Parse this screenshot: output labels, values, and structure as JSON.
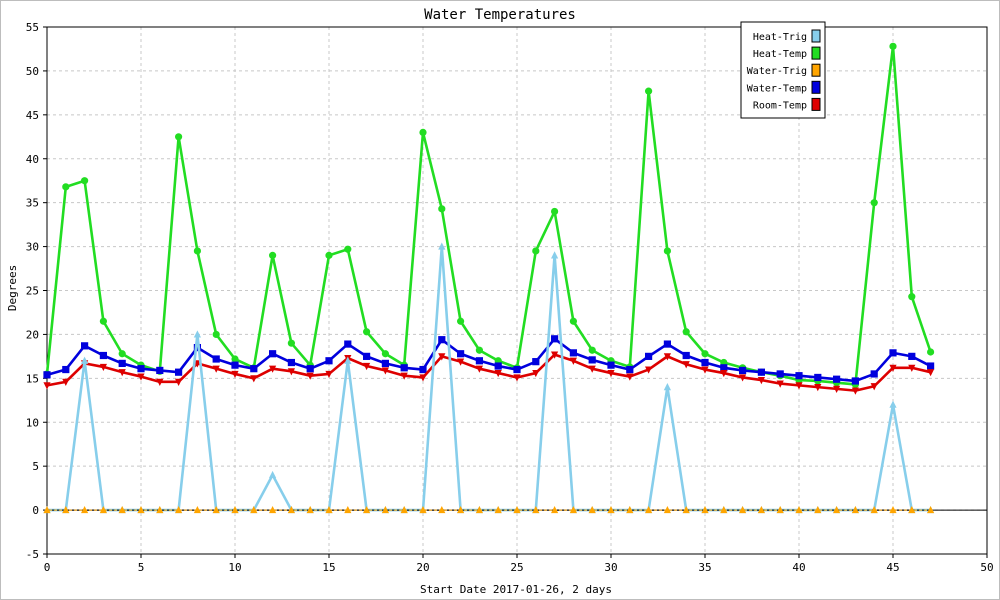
{
  "chart_data": {
    "type": "line",
    "title": "Water Temperatures",
    "xlabel": "Start Date 2017-01-26, 2 days",
    "ylabel": "Degrees",
    "xlim": [
      0,
      50
    ],
    "ylim": [
      -5,
      55
    ],
    "x_ticks": [
      0,
      5,
      10,
      15,
      20,
      25,
      30,
      35,
      40,
      45,
      50
    ],
    "y_ticks": [
      -5,
      0,
      5,
      10,
      15,
      20,
      25,
      30,
      35,
      40,
      45,
      50,
      55
    ],
    "grid": true,
    "legend_position": "top-right",
    "x": [
      0,
      1,
      2,
      3,
      4,
      5,
      6,
      7,
      8,
      9,
      10,
      11,
      12,
      13,
      14,
      15,
      16,
      17,
      18,
      19,
      20,
      21,
      22,
      23,
      24,
      25,
      26,
      27,
      28,
      29,
      30,
      31,
      32,
      33,
      34,
      35,
      36,
      37,
      38,
      39,
      40,
      41,
      42,
      43,
      44,
      45,
      46,
      47
    ],
    "series": [
      {
        "name": "Heat-Trig",
        "color": "#87ceeb",
        "marker": "triangle-up",
        "values": [
          0,
          0,
          17,
          0,
          0,
          0,
          0,
          0,
          20,
          0,
          0,
          0,
          4,
          0,
          0,
          0,
          17,
          0,
          0,
          0,
          0,
          30,
          0,
          0,
          0,
          0,
          0,
          29,
          0,
          0,
          0,
          0,
          0,
          14,
          0,
          0,
          0,
          0,
          0,
          0,
          0,
          0,
          0,
          0,
          0,
          12,
          0,
          0
        ]
      },
      {
        "name": "Heat-Temp",
        "color": "#22dd22",
        "marker": "circle",
        "values": [
          15.5,
          36.8,
          37.5,
          21.5,
          17.8,
          16.5,
          15.8,
          42.5,
          29.5,
          20,
          17.2,
          16.2,
          29,
          19,
          16.5,
          29,
          29.7,
          20.3,
          17.8,
          16.5,
          43,
          34.3,
          21.5,
          18.2,
          17,
          16.2,
          29.5,
          34,
          21.5,
          18.2,
          17,
          16.3,
          47.7,
          29.5,
          20.3,
          17.8,
          16.8,
          16.2,
          15.7,
          15.3,
          14.8,
          14.7,
          14.5,
          14.3,
          35,
          52.8,
          24.3,
          18
        ]
      },
      {
        "name": "Water-Trig",
        "color": "#ffa500",
        "marker": "triangle-up",
        "values": [
          0,
          0,
          0,
          0,
          0,
          0,
          0,
          0,
          0,
          0,
          0,
          0,
          0,
          0,
          0,
          0,
          0,
          0,
          0,
          0,
          0,
          0,
          0,
          0,
          0,
          0,
          0,
          0,
          0,
          0,
          0,
          0,
          0,
          0,
          0,
          0,
          0,
          0,
          0,
          0,
          0,
          0,
          0,
          0,
          0,
          0,
          0,
          0
        ]
      },
      {
        "name": "Water-Temp",
        "color": "#0000dd",
        "marker": "square",
        "values": [
          15.4,
          16,
          18.7,
          17.6,
          16.7,
          16.1,
          15.9,
          15.7,
          18.5,
          17.2,
          16.5,
          16.1,
          17.8,
          16.8,
          16.1,
          17,
          18.9,
          17.5,
          16.7,
          16.2,
          16,
          19.4,
          17.8,
          17,
          16.4,
          16,
          16.9,
          19.5,
          17.9,
          17.1,
          16.5,
          16,
          17.5,
          18.9,
          17.6,
          16.8,
          16.2,
          15.9,
          15.7,
          15.5,
          15.3,
          15.1,
          14.9,
          14.7,
          15.5,
          17.9,
          17.5,
          16.4
        ]
      },
      {
        "name": "Room-Temp",
        "color": "#dd0000",
        "marker": "triangle-down",
        "values": [
          14.2,
          14.6,
          16.7,
          16.3,
          15.7,
          15.2,
          14.6,
          14.6,
          16.7,
          16.1,
          15.5,
          15,
          16.1,
          15.8,
          15.3,
          15.5,
          17.3,
          16.4,
          15.9,
          15.3,
          15.1,
          17.5,
          16.9,
          16.1,
          15.6,
          15.1,
          15.6,
          17.7,
          17,
          16.1,
          15.6,
          15.2,
          16,
          17.5,
          16.6,
          16,
          15.6,
          15.1,
          14.8,
          14.4,
          14.2,
          14,
          13.8,
          13.6,
          14.1,
          16.2,
          16.2,
          15.7
        ]
      }
    ]
  }
}
